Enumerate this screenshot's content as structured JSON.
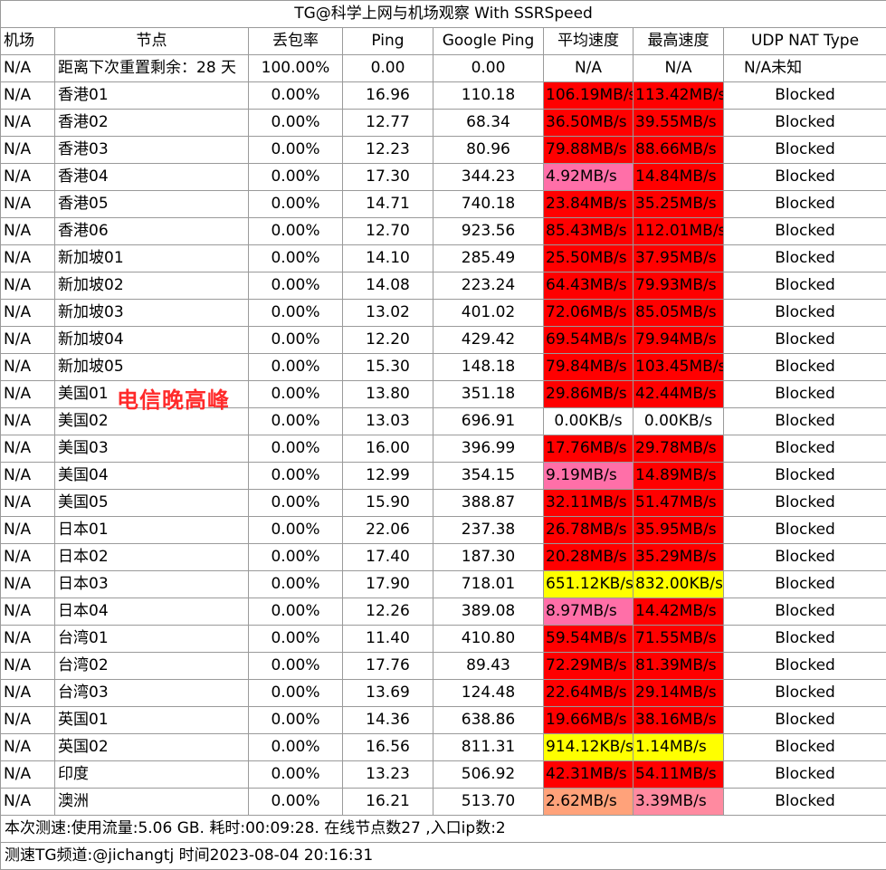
{
  "title": "TG@科学上网与机场观察 With SSRSpeed",
  "headers": [
    "机场",
    "节点",
    "丢包率",
    "Ping",
    "Google Ping",
    "平均速度",
    "最高速度",
    "UDP NAT Type"
  ],
  "colors": {
    "red": "#ff0000",
    "pink": "#ff6fa8",
    "yellow": "#ffff00",
    "orange": "#ffa27a",
    "light_pink": "#ff8aa0",
    "white": "#ffffff"
  },
  "rows": [
    {
      "airport": "N/A",
      "node": "距离下次重置剩余：28 天",
      "loss": "100.00%",
      "ping": "0.00",
      "gping": "0.00",
      "avg": "N/A",
      "avg_color": "white",
      "max": "N/A",
      "max_color": "white",
      "udp": "N/A未知"
    },
    {
      "airport": "N/A",
      "node": "香港01",
      "loss": "0.00%",
      "ping": "16.96",
      "gping": "110.18",
      "avg": "106.19MB/s",
      "avg_color": "red",
      "max": "113.42MB/s",
      "max_color": "red",
      "udp": "Blocked"
    },
    {
      "airport": "N/A",
      "node": "香港02",
      "loss": "0.00%",
      "ping": "12.77",
      "gping": "68.34",
      "avg": "36.50MB/s",
      "avg_color": "red",
      "max": "39.55MB/s",
      "max_color": "red",
      "udp": "Blocked"
    },
    {
      "airport": "N/A",
      "node": "香港03",
      "loss": "0.00%",
      "ping": "12.23",
      "gping": "80.96",
      "avg": "79.88MB/s",
      "avg_color": "red",
      "max": "88.66MB/s",
      "max_color": "red",
      "udp": "Blocked"
    },
    {
      "airport": "N/A",
      "node": "香港04",
      "loss": "0.00%",
      "ping": "17.30",
      "gping": "344.23",
      "avg": "4.92MB/s",
      "avg_color": "pink",
      "max": "14.84MB/s",
      "max_color": "red",
      "udp": "Blocked"
    },
    {
      "airport": "N/A",
      "node": "香港05",
      "loss": "0.00%",
      "ping": "14.71",
      "gping": "740.18",
      "avg": "23.84MB/s",
      "avg_color": "red",
      "max": "35.25MB/s",
      "max_color": "red",
      "udp": "Blocked"
    },
    {
      "airport": "N/A",
      "node": "香港06",
      "loss": "0.00%",
      "ping": "12.70",
      "gping": "923.56",
      "avg": "85.43MB/s",
      "avg_color": "red",
      "max": "112.01MB/s",
      "max_color": "red",
      "udp": "Blocked"
    },
    {
      "airport": "N/A",
      "node": "新加坡01",
      "loss": "0.00%",
      "ping": "14.10",
      "gping": "285.49",
      "avg": "25.50MB/s",
      "avg_color": "red",
      "max": "37.95MB/s",
      "max_color": "red",
      "udp": "Blocked"
    },
    {
      "airport": "N/A",
      "node": "新加坡02",
      "loss": "0.00%",
      "ping": "14.08",
      "gping": "223.24",
      "avg": "64.43MB/s",
      "avg_color": "red",
      "max": "79.93MB/s",
      "max_color": "red",
      "udp": "Blocked"
    },
    {
      "airport": "N/A",
      "node": "新加坡03",
      "loss": "0.00%",
      "ping": "13.02",
      "gping": "401.02",
      "avg": "72.06MB/s",
      "avg_color": "red",
      "max": "85.05MB/s",
      "max_color": "red",
      "udp": "Blocked"
    },
    {
      "airport": "N/A",
      "node": "新加坡04",
      "loss": "0.00%",
      "ping": "12.20",
      "gping": "429.42",
      "avg": "69.54MB/s",
      "avg_color": "red",
      "max": "79.94MB/s",
      "max_color": "red",
      "udp": "Blocked"
    },
    {
      "airport": "N/A",
      "node": "新加坡05",
      "loss": "0.00%",
      "ping": "15.30",
      "gping": "148.18",
      "avg": "79.84MB/s",
      "avg_color": "red",
      "max": "103.45MB/s",
      "max_color": "red",
      "udp": "Blocked"
    },
    {
      "airport": "N/A",
      "node": "美国01",
      "loss": "0.00%",
      "ping": "13.80",
      "gping": "351.18",
      "avg": "29.86MB/s",
      "avg_color": "red",
      "max": "42.44MB/s",
      "max_color": "red",
      "udp": "Blocked"
    },
    {
      "airport": "N/A",
      "node": "美国02",
      "loss": "0.00%",
      "ping": "13.03",
      "gping": "696.91",
      "avg": "0.00KB/s",
      "avg_color": "white",
      "max": "0.00KB/s",
      "max_color": "white",
      "udp": "Blocked"
    },
    {
      "airport": "N/A",
      "node": "美国03",
      "loss": "0.00%",
      "ping": "16.00",
      "gping": "396.99",
      "avg": "17.76MB/s",
      "avg_color": "red",
      "max": "29.78MB/s",
      "max_color": "red",
      "udp": "Blocked"
    },
    {
      "airport": "N/A",
      "node": "美国04",
      "loss": "0.00%",
      "ping": "12.99",
      "gping": "354.15",
      "avg": "9.19MB/s",
      "avg_color": "pink",
      "max": "14.89MB/s",
      "max_color": "red",
      "udp": "Blocked"
    },
    {
      "airport": "N/A",
      "node": "美国05",
      "loss": "0.00%",
      "ping": "15.90",
      "gping": "388.87",
      "avg": "32.11MB/s",
      "avg_color": "red",
      "max": "51.47MB/s",
      "max_color": "red",
      "udp": "Blocked"
    },
    {
      "airport": "N/A",
      "node": "日本01",
      "loss": "0.00%",
      "ping": "22.06",
      "gping": "237.38",
      "avg": "26.78MB/s",
      "avg_color": "red",
      "max": "35.95MB/s",
      "max_color": "red",
      "udp": "Blocked"
    },
    {
      "airport": "N/A",
      "node": "日本02",
      "loss": "0.00%",
      "ping": "17.40",
      "gping": "187.30",
      "avg": "20.28MB/s",
      "avg_color": "red",
      "max": "35.29MB/s",
      "max_color": "red",
      "udp": "Blocked"
    },
    {
      "airport": "N/A",
      "node": "日本03",
      "loss": "0.00%",
      "ping": "17.90",
      "gping": "718.01",
      "avg": "651.12KB/s",
      "avg_color": "yellow",
      "max": "832.00KB/s",
      "max_color": "yellow",
      "udp": "Blocked"
    },
    {
      "airport": "N/A",
      "node": "日本04",
      "loss": "0.00%",
      "ping": "12.26",
      "gping": "389.08",
      "avg": "8.97MB/s",
      "avg_color": "pink",
      "max": "14.42MB/s",
      "max_color": "red",
      "udp": "Blocked"
    },
    {
      "airport": "N/A",
      "node": "台湾01",
      "loss": "0.00%",
      "ping": "11.40",
      "gping": "410.80",
      "avg": "59.54MB/s",
      "avg_color": "red",
      "max": "71.55MB/s",
      "max_color": "red",
      "udp": "Blocked"
    },
    {
      "airport": "N/A",
      "node": "台湾02",
      "loss": "0.00%",
      "ping": "17.76",
      "gping": "89.43",
      "avg": "72.29MB/s",
      "avg_color": "red",
      "max": "81.39MB/s",
      "max_color": "red",
      "udp": "Blocked"
    },
    {
      "airport": "N/A",
      "node": "台湾03",
      "loss": "0.00%",
      "ping": "13.69",
      "gping": "124.48",
      "avg": "22.64MB/s",
      "avg_color": "red",
      "max": "29.14MB/s",
      "max_color": "red",
      "udp": "Blocked"
    },
    {
      "airport": "N/A",
      "node": "英国01",
      "loss": "0.00%",
      "ping": "14.36",
      "gping": "638.86",
      "avg": "19.66MB/s",
      "avg_color": "red",
      "max": "38.16MB/s",
      "max_color": "red",
      "udp": "Blocked"
    },
    {
      "airport": "N/A",
      "node": "英国02",
      "loss": "0.00%",
      "ping": "16.56",
      "gping": "811.31",
      "avg": "914.12KB/s",
      "avg_color": "yellow",
      "max": "1.14MB/s",
      "max_color": "yellow",
      "udp": "Blocked"
    },
    {
      "airport": "N/A",
      "node": "印度",
      "loss": "0.00%",
      "ping": "13.23",
      "gping": "506.92",
      "avg": "42.31MB/s",
      "avg_color": "red",
      "max": "54.11MB/s",
      "max_color": "red",
      "udp": "Blocked"
    },
    {
      "airport": "N/A",
      "node": "澳洲",
      "loss": "0.00%",
      "ping": "16.21",
      "gping": "513.70",
      "avg": "2.62MB/s",
      "avg_color": "orange",
      "max": "3.39MB/s",
      "max_color": "light_pink",
      "udp": "Blocked"
    }
  ],
  "annotation": "电信晚高峰",
  "footer_stats": "本次测速:使用流量:5.06 GB. 耗时:00:09:28. 在线节点数27 ,入口ip数:2",
  "footer_channel": "测速TG频道:@jichangtj 时间2023-08-04 20:16:31"
}
